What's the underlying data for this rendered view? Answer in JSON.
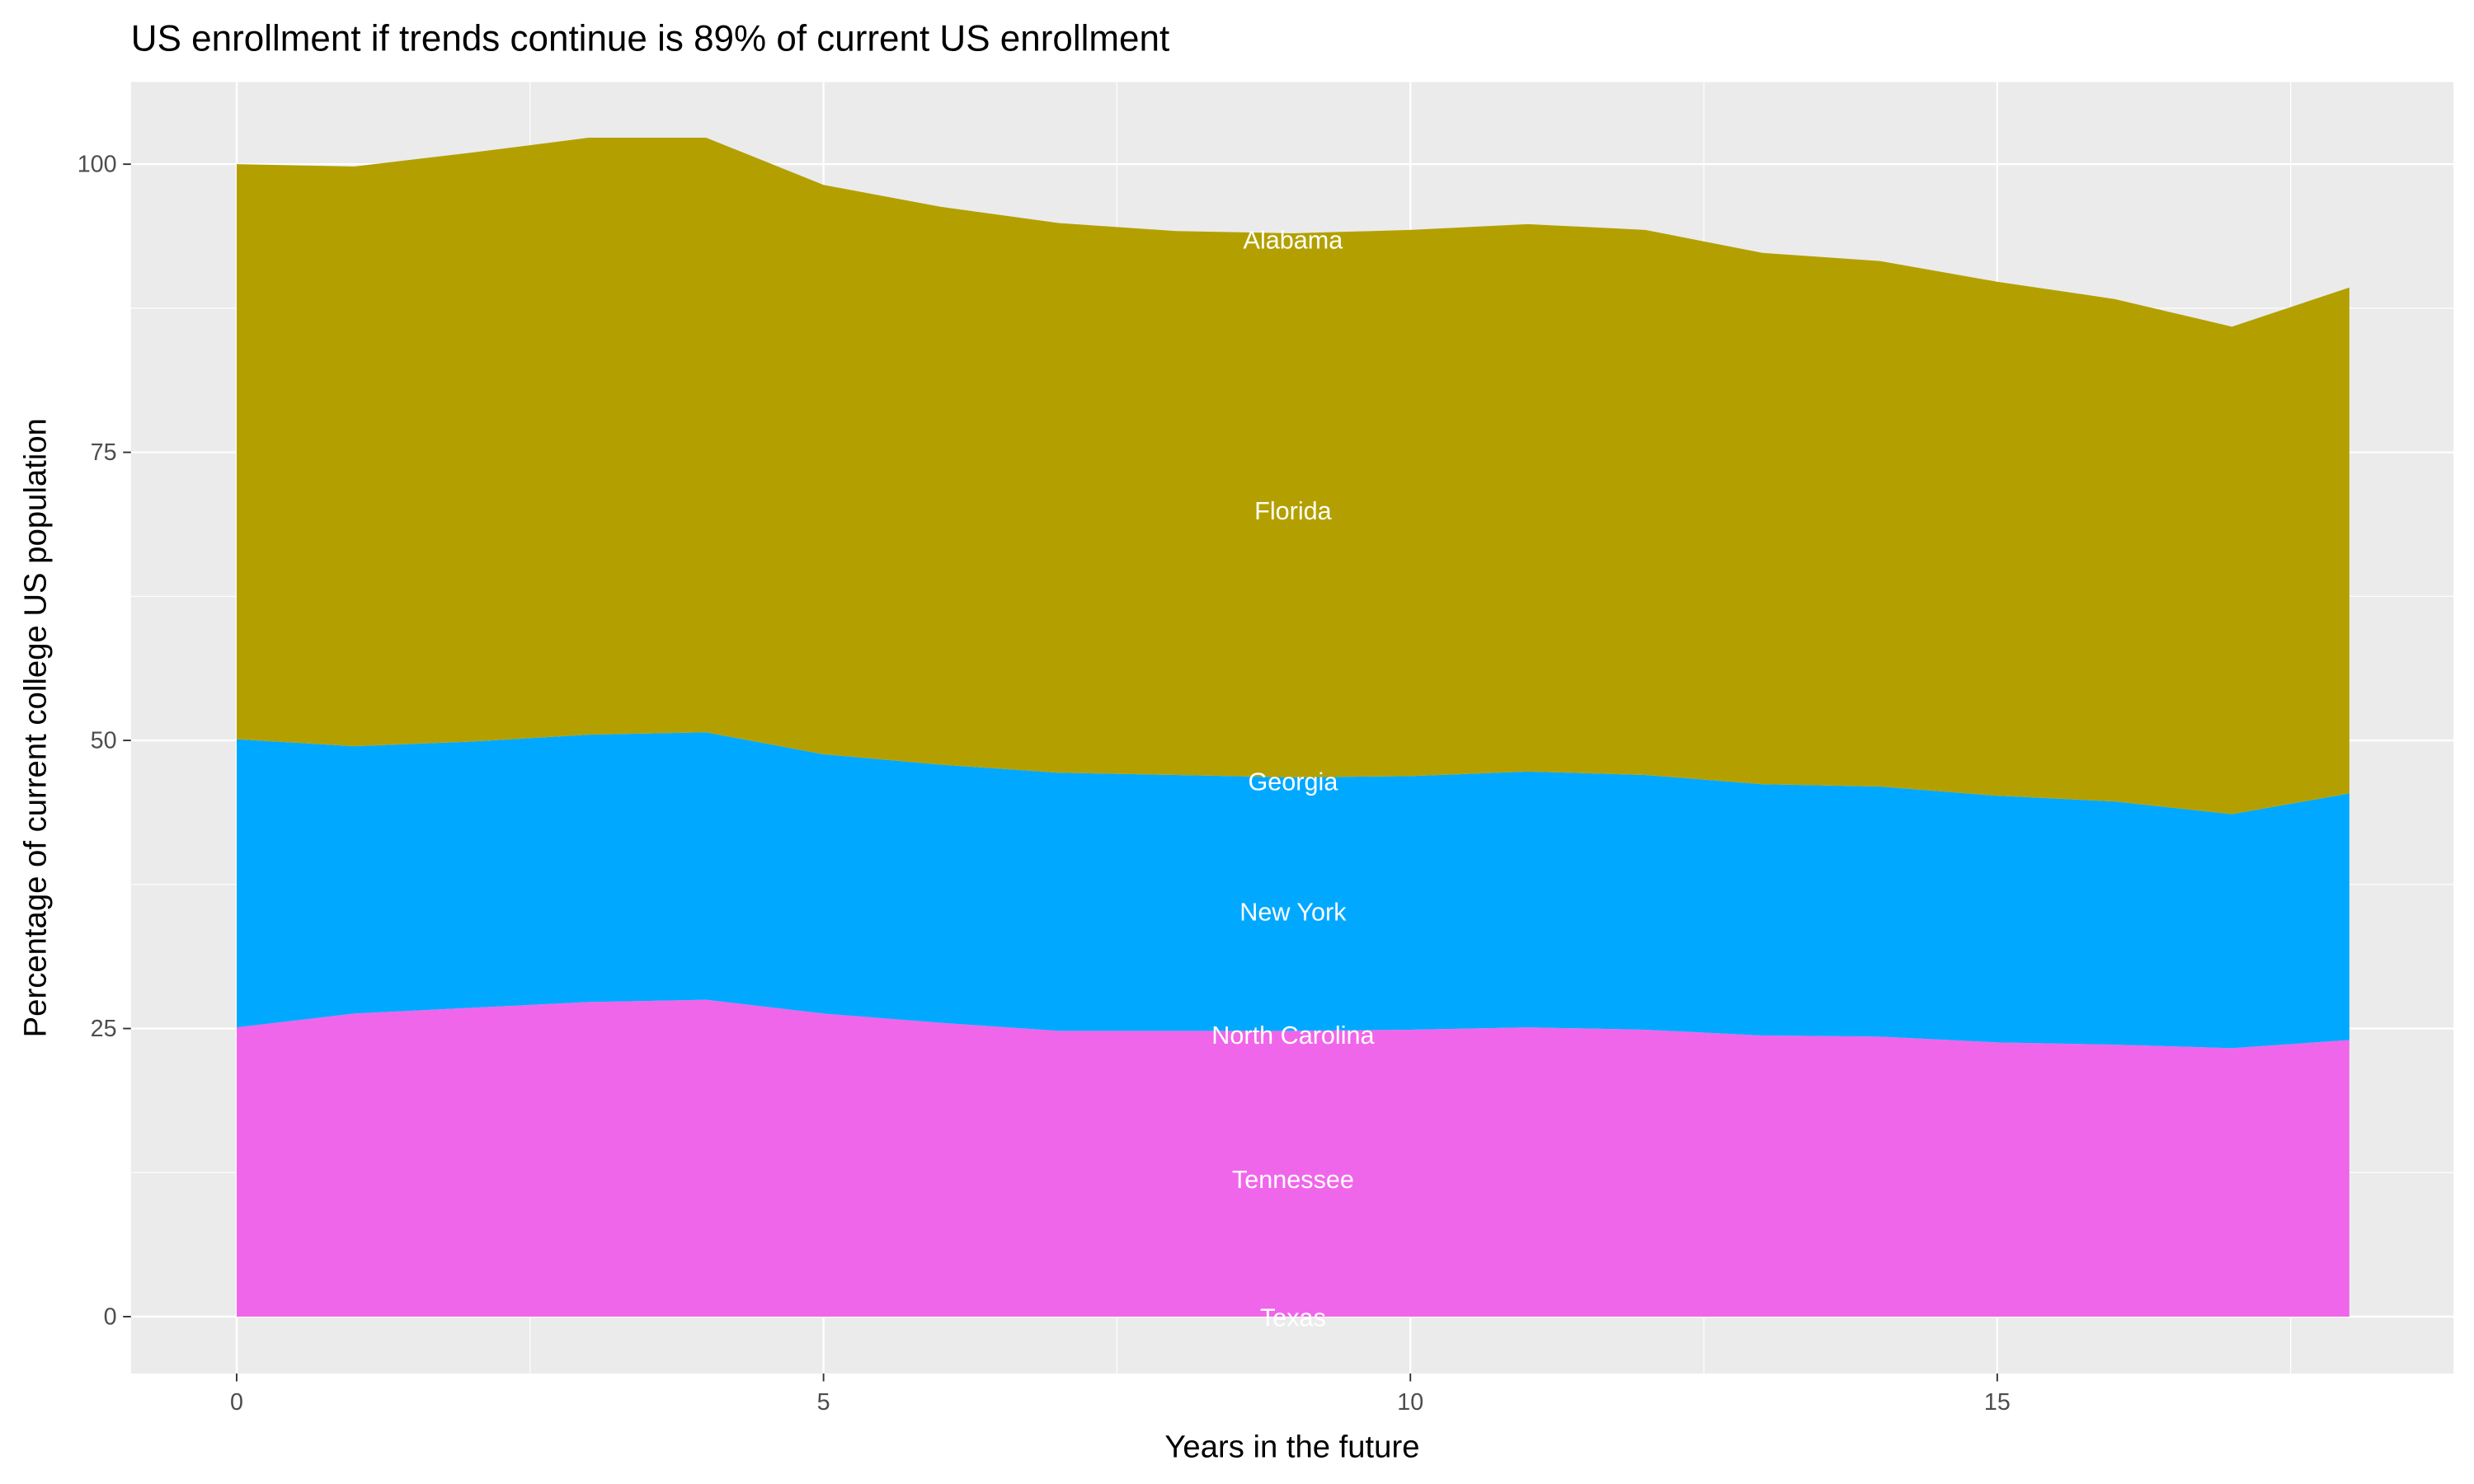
{
  "chart_data": {
    "type": "area",
    "stacked": true,
    "title": "US enrollment if trends continue is 89% of current US enrollment",
    "xlabel": "Years in the future",
    "ylabel": "Percentage of current college US population",
    "xlim": [
      -1.8,
      21.8
    ],
    "ylim": [
      -5,
      107
    ],
    "x_ticks": [
      0,
      5,
      10,
      15
    ],
    "y_ticks": [
      0,
      25,
      50,
      75,
      100
    ],
    "grid": true,
    "legend": "none",
    "x": [
      0,
      1,
      2,
      3,
      4,
      5,
      6,
      7,
      8,
      9,
      10,
      11,
      12,
      13,
      14,
      15,
      16,
      17,
      18
    ],
    "bands": [
      {
        "color": "#F066EA",
        "top": [
          25.1,
          26.3,
          26.8,
          27.3,
          27.5,
          26.3,
          25.5,
          24.8,
          24.8,
          24.8,
          24.9,
          25.1,
          24.9,
          24.4,
          24.3,
          23.8,
          23.6,
          23.3,
          24.0
        ]
      },
      {
        "color": "#00A9FF",
        "top": [
          50.1,
          49.5,
          49.9,
          50.5,
          50.7,
          48.8,
          47.9,
          47.2,
          47.0,
          46.8,
          46.9,
          47.3,
          47.0,
          46.2,
          46.0,
          45.2,
          44.7,
          43.6,
          45.4
        ]
      },
      {
        "color": "#B3A000",
        "top": [
          100.0,
          99.8,
          101.0,
          102.3,
          102.3,
          98.2,
          96.3,
          94.9,
          94.2,
          94.0,
          94.3,
          94.8,
          94.3,
          92.3,
          91.6,
          89.8,
          88.3,
          85.9,
          89.3
        ]
      }
    ],
    "annotations": [
      {
        "text": "Alabama",
        "x": 9,
        "y": 93.5
      },
      {
        "text": "Florida",
        "x": 9,
        "y": 70
      },
      {
        "text": "Georgia",
        "x": 9,
        "y": 46.5
      },
      {
        "text": "New York",
        "x": 9,
        "y": 35.2
      },
      {
        "text": "North Carolina",
        "x": 9,
        "y": 24.5
      },
      {
        "text": "Tennessee",
        "x": 9,
        "y": 12
      },
      {
        "text": "Texas",
        "x": 9,
        "y": 0
      }
    ]
  }
}
